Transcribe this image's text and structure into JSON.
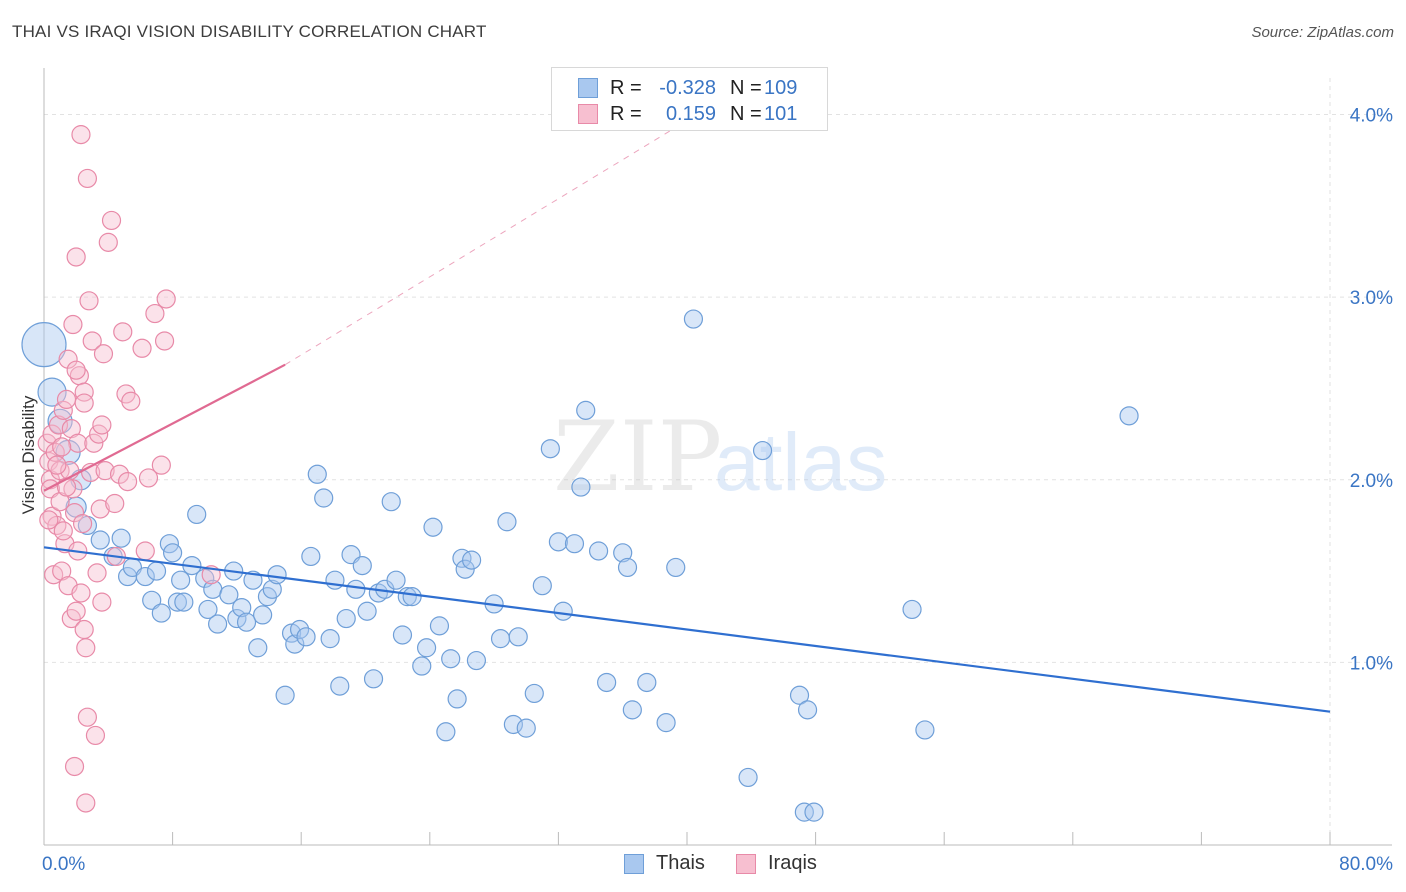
{
  "title": "THAI VS IRAQI VISION DISABILITY CORRELATION CHART",
  "source": "Source: ZipAtlas.com",
  "watermark": {
    "zip": "ZIP",
    "atlas": "atlas"
  },
  "legend_top": [
    {
      "r_label": "R =",
      "r_value": "-0.328",
      "n_label": "N =",
      "n_value": "109",
      "color": "#a9c8ef",
      "border": "#6f9fd8"
    },
    {
      "r_label": "R =",
      "r_value": "0.159",
      "n_label": "N =",
      "n_value": "101",
      "color": "#f7bfd0",
      "border": "#e88aa8"
    }
  ],
  "legend_bottom": [
    {
      "label": "Thais",
      "color": "#a9c8ef",
      "border": "#6f9fd8"
    },
    {
      "label": "Iraqis",
      "color": "#f7bfd0",
      "border": "#e88aa8"
    }
  ],
  "chart_data": {
    "type": "scatter",
    "title": "THAI VS IRAQI VISION DISABILITY CORRELATION CHART",
    "xlabel": "",
    "ylabel": "Vision Disability",
    "xlim": [
      0,
      80
    ],
    "ylim": [
      0,
      4.2
    ],
    "x_tick_labels": [
      "0.0%",
      "80.0%"
    ],
    "y_ticks": [
      1.0,
      2.0,
      3.0,
      4.0
    ],
    "y_tick_labels": [
      "1.0%",
      "2.0%",
      "3.0%",
      "4.0%"
    ],
    "grid": true,
    "legend_position": "top-center",
    "series": [
      {
        "name": "Thais",
        "color": "#6f9fd8",
        "fill": "#a9c8ef",
        "trend": {
          "x0": 0,
          "y0": 1.63,
          "x1": 80,
          "y1": 0.73,
          "color": "#2f6fd0"
        },
        "points": [
          [
            0,
            2.74,
            22
          ],
          [
            0.5,
            2.48,
            14
          ],
          [
            1,
            2.32,
            12
          ],
          [
            1.5,
            2.15,
            12
          ],
          [
            2.3,
            2.0,
            10
          ],
          [
            2.0,
            1.85,
            10
          ],
          [
            2.7,
            1.75,
            9
          ],
          [
            3.5,
            1.67,
            9
          ],
          [
            4.3,
            1.58,
            9
          ],
          [
            4.8,
            1.68,
            9
          ],
          [
            5.2,
            1.47,
            9
          ],
          [
            5.5,
            1.52,
            9
          ],
          [
            6.3,
            1.47,
            9
          ],
          [
            6.7,
            1.34,
            9
          ],
          [
            7.0,
            1.5,
            9
          ],
          [
            7.3,
            1.27,
            9
          ],
          [
            7.8,
            1.65,
            9
          ],
          [
            8.0,
            1.6,
            9
          ],
          [
            8.3,
            1.33,
            9
          ],
          [
            8.5,
            1.45,
            9
          ],
          [
            8.7,
            1.33,
            9
          ],
          [
            9.2,
            1.53,
            9
          ],
          [
            9.5,
            1.81,
            9
          ],
          [
            10.0,
            1.46,
            9
          ],
          [
            10.2,
            1.29,
            9
          ],
          [
            10.5,
            1.4,
            9
          ],
          [
            10.8,
            1.21,
            9
          ],
          [
            11.5,
            1.37,
            9
          ],
          [
            11.8,
            1.5,
            9
          ],
          [
            12.0,
            1.24,
            9
          ],
          [
            12.3,
            1.3,
            9
          ],
          [
            12.6,
            1.22,
            9
          ],
          [
            13.0,
            1.45,
            9
          ],
          [
            13.3,
            1.08,
            9
          ],
          [
            13.6,
            1.26,
            9
          ],
          [
            13.9,
            1.36,
            9
          ],
          [
            14.2,
            1.4,
            9
          ],
          [
            14.5,
            1.48,
            9
          ],
          [
            15.0,
            0.82,
            9
          ],
          [
            15.4,
            1.16,
            9
          ],
          [
            15.6,
            1.1,
            9
          ],
          [
            15.9,
            1.18,
            9
          ],
          [
            16.3,
            1.14,
            9
          ],
          [
            16.6,
            1.58,
            9
          ],
          [
            17.0,
            2.03,
            9
          ],
          [
            17.4,
            1.9,
            9
          ],
          [
            17.8,
            1.13,
            9
          ],
          [
            18.1,
            1.45,
            9
          ],
          [
            18.4,
            0.87,
            9
          ],
          [
            18.8,
            1.24,
            9
          ],
          [
            19.1,
            1.59,
            9
          ],
          [
            19.4,
            1.4,
            9
          ],
          [
            19.8,
            1.53,
            9
          ],
          [
            20.1,
            1.28,
            9
          ],
          [
            20.5,
            0.91,
            9
          ],
          [
            20.8,
            1.38,
            9
          ],
          [
            21.2,
            1.4,
            9
          ],
          [
            21.6,
            1.88,
            9
          ],
          [
            21.9,
            1.45,
            9
          ],
          [
            22.3,
            1.15,
            9
          ],
          [
            22.6,
            1.36,
            9
          ],
          [
            22.9,
            1.36,
            9
          ],
          [
            23.5,
            0.98,
            9
          ],
          [
            23.8,
            1.08,
            9
          ],
          [
            24.2,
            1.74,
            9
          ],
          [
            24.6,
            1.2,
            9
          ],
          [
            25.0,
            0.62,
            9
          ],
          [
            25.3,
            1.02,
            9
          ],
          [
            25.7,
            0.8,
            9
          ],
          [
            26.0,
            1.57,
            9
          ],
          [
            26.2,
            1.51,
            9
          ],
          [
            26.6,
            1.56,
            9
          ],
          [
            26.9,
            1.01,
            9
          ],
          [
            28.0,
            1.32,
            9
          ],
          [
            28.4,
            1.13,
            9
          ],
          [
            28.8,
            1.77,
            9
          ],
          [
            29.2,
            0.66,
            9
          ],
          [
            29.5,
            1.14,
            9
          ],
          [
            30.0,
            0.64,
            9
          ],
          [
            30.5,
            0.83,
            9
          ],
          [
            31.0,
            1.42,
            9
          ],
          [
            31.5,
            2.17,
            9
          ],
          [
            32.0,
            1.66,
            9
          ],
          [
            32.3,
            1.28,
            9
          ],
          [
            33.0,
            1.65,
            9
          ],
          [
            33.4,
            1.96,
            9
          ],
          [
            33.7,
            2.38,
            9
          ],
          [
            34.5,
            1.61,
            9
          ],
          [
            35.0,
            0.89,
            9
          ],
          [
            36.0,
            1.6,
            9
          ],
          [
            36.3,
            1.52,
            9
          ],
          [
            36.6,
            0.74,
            9
          ],
          [
            37.5,
            0.89,
            9
          ],
          [
            38.7,
            0.67,
            9
          ],
          [
            39.3,
            1.52,
            9
          ],
          [
            40.4,
            2.88,
            9
          ],
          [
            43.8,
            0.37,
            9
          ],
          [
            44.7,
            2.16,
            9
          ],
          [
            47.0,
            0.82,
            9
          ],
          [
            47.5,
            0.74,
            9
          ],
          [
            47.3,
            0.18,
            9
          ],
          [
            47.9,
            0.18,
            9
          ],
          [
            54.0,
            1.29,
            9
          ],
          [
            54.8,
            0.63,
            9
          ],
          [
            67.5,
            2.35,
            9
          ]
        ]
      },
      {
        "name": "Iraqis",
        "color": "#e88aa8",
        "fill": "#f7bfd0",
        "trend": {
          "x0": 0,
          "y0": 1.94,
          "x1": 15,
          "y1": 2.63,
          "dash_to_x": 41,
          "dash_to_y": 4.02,
          "color": "#e06a92"
        },
        "points": [
          [
            0.2,
            2.2,
            9
          ],
          [
            0.3,
            2.1,
            9
          ],
          [
            0.4,
            2.0,
            9
          ],
          [
            0.4,
            1.95,
            9
          ],
          [
            0.5,
            2.25,
            9
          ],
          [
            0.5,
            1.8,
            9
          ],
          [
            0.6,
            1.48,
            9
          ],
          [
            0.7,
            2.15,
            9
          ],
          [
            0.8,
            1.75,
            9
          ],
          [
            0.9,
            2.3,
            9
          ],
          [
            1.0,
            1.88,
            9
          ],
          [
            1.0,
            2.05,
            9
          ],
          [
            1.1,
            1.5,
            9
          ],
          [
            1.2,
            2.38,
            9
          ],
          [
            1.3,
            1.65,
            9
          ],
          [
            1.4,
            2.44,
            9
          ],
          [
            1.5,
            2.66,
            9
          ],
          [
            1.5,
            1.42,
            9
          ],
          [
            1.6,
            2.05,
            9
          ],
          [
            1.7,
            2.28,
            9
          ],
          [
            1.7,
            1.24,
            9
          ],
          [
            1.8,
            2.85,
            9
          ],
          [
            1.8,
            1.95,
            9
          ],
          [
            1.9,
            1.82,
            9
          ],
          [
            2.0,
            3.22,
            9
          ],
          [
            2.0,
            1.28,
            9
          ],
          [
            2.1,
            2.2,
            9
          ],
          [
            2.2,
            2.57,
            9
          ],
          [
            2.3,
            1.38,
            9
          ],
          [
            2.3,
            3.89,
            9
          ],
          [
            2.4,
            1.76,
            9
          ],
          [
            2.5,
            2.48,
            9
          ],
          [
            2.5,
            1.18,
            9
          ],
          [
            2.6,
            1.08,
            9
          ],
          [
            2.6,
            0.23,
            9
          ],
          [
            2.7,
            3.65,
            9
          ],
          [
            2.7,
            0.7,
            9
          ],
          [
            2.8,
            2.98,
            9
          ],
          [
            2.9,
            2.04,
            9
          ],
          [
            3.0,
            2.76,
            9
          ],
          [
            3.1,
            2.2,
            9
          ],
          [
            3.2,
            0.6,
            9
          ],
          [
            3.3,
            1.49,
            9
          ],
          [
            3.4,
            2.25,
            9
          ],
          [
            3.5,
            1.84,
            9
          ],
          [
            3.6,
            2.3,
            9
          ],
          [
            3.6,
            1.33,
            9
          ],
          [
            3.7,
            2.69,
            9
          ],
          [
            3.8,
            2.05,
            9
          ],
          [
            4.0,
            3.3,
            9
          ],
          [
            4.2,
            3.42,
            9
          ],
          [
            4.4,
            1.87,
            9
          ],
          [
            4.5,
            1.58,
            9
          ],
          [
            4.7,
            2.03,
            9
          ],
          [
            4.9,
            2.81,
            9
          ],
          [
            5.1,
            2.47,
            9
          ],
          [
            5.2,
            1.99,
            9
          ],
          [
            5.4,
            2.43,
            9
          ],
          [
            6.1,
            2.72,
            9
          ],
          [
            6.3,
            1.61,
            9
          ],
          [
            6.5,
            2.01,
            9
          ],
          [
            6.9,
            2.91,
            9
          ],
          [
            7.3,
            2.08,
            9
          ],
          [
            7.6,
            2.99,
            9
          ],
          [
            7.5,
            2.76,
            9
          ],
          [
            10.4,
            1.48,
            9
          ],
          [
            1.1,
            2.18,
            9
          ],
          [
            0.3,
            1.78,
            9
          ],
          [
            2.0,
            2.6,
            9
          ],
          [
            2.5,
            2.42,
            9
          ],
          [
            1.9,
            0.43,
            9
          ],
          [
            1.4,
            1.96,
            9
          ],
          [
            0.8,
            2.08,
            9
          ],
          [
            1.2,
            1.72,
            9
          ],
          [
            2.1,
            1.61,
            9
          ]
        ]
      }
    ]
  }
}
